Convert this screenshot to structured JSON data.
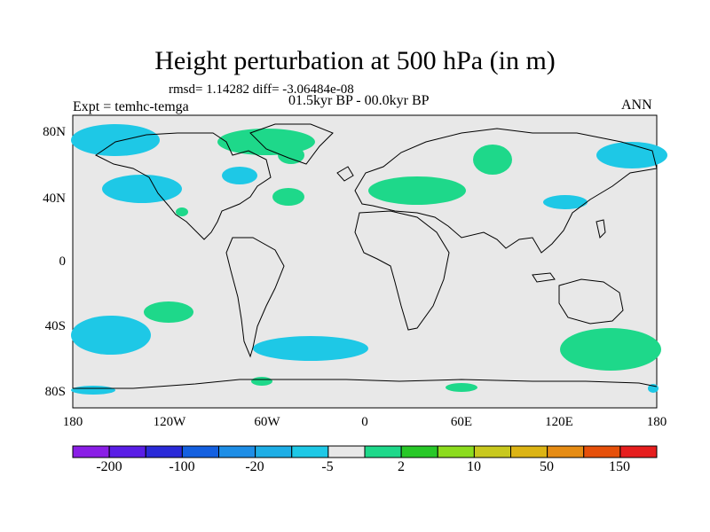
{
  "title": "Height perturbation at 500 hPa (in m)",
  "stats": "rmsd= 1.14282 diff= -3.06484e-08",
  "period": "01.5kyr BP - 00.0kyr BP",
  "experiment": "Expt = temhc-temga",
  "season": "ANN",
  "map": {
    "lat_ticks": [
      "80N",
      "40N",
      "0",
      "40S",
      "80S"
    ],
    "lon_ticks": [
      "180",
      "120W",
      "60W",
      "0",
      "60E",
      "120E",
      "180"
    ],
    "background_color": "#e8e8e8"
  },
  "colorbar": {
    "labels": [
      "-200",
      "-100",
      "-20",
      "-5",
      "2",
      "10",
      "50",
      "150"
    ],
    "colors": [
      "#8a1ee6",
      "#5a1ee6",
      "#2a2ad8",
      "#1460e0",
      "#1e8ee6",
      "#1eaee6",
      "#1ec8e6",
      "#e8e8e8",
      "#1ed88a",
      "#28c828",
      "#8cdc1e",
      "#c8c81e",
      "#dcb414",
      "#e68c14",
      "#e6500a",
      "#e61e1e"
    ]
  },
  "regions": {
    "negative_color": "#1ec8e6",
    "positive_color": "#1ed88a"
  }
}
